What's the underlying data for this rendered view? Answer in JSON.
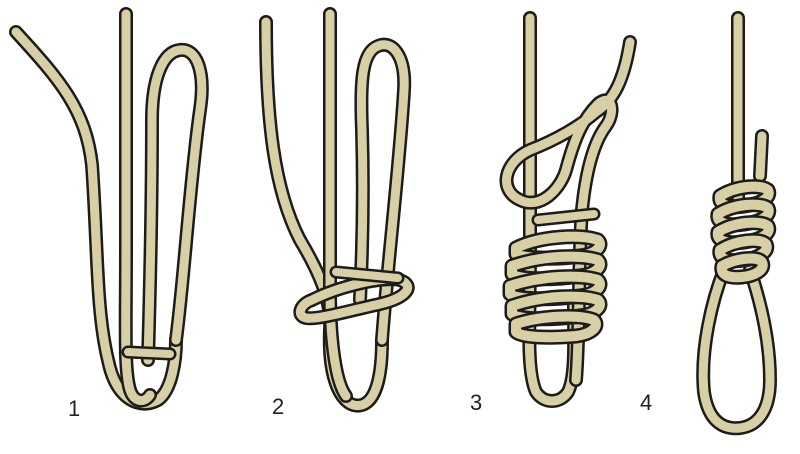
{
  "colors": {
    "rope": "#d8d0a4",
    "outline": "#1c1c1c",
    "background": "#ffffff"
  },
  "steps": [
    {
      "label": "1"
    },
    {
      "label": "2"
    },
    {
      "label": "3"
    },
    {
      "label": "4"
    }
  ]
}
